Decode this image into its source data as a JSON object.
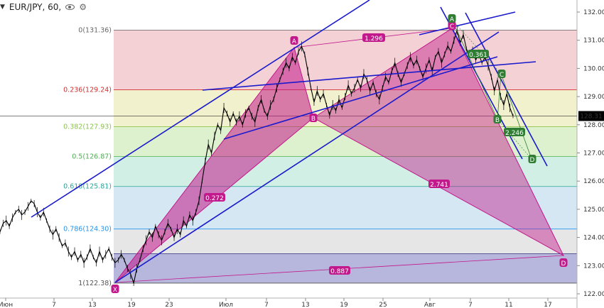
{
  "header": {
    "symbol_label": "EUR/JPY, 60,",
    "collapse_icon": "chevron-down-icon",
    "visibility_icon": "eye-icon",
    "settings_icon": "gear-icon"
  },
  "chart_data": {
    "type": "line",
    "title": "EUR/JPY, 60,",
    "xlabel": "",
    "ylabel": "",
    "ylim": [
      121.8,
      132.4
    ],
    "last_price_label": "128.31",
    "y_ticks": [
      "132.00",
      "131.00",
      "130.00",
      "129.00",
      "128.00",
      "127.00",
      "126.00",
      "125.00",
      "124.00",
      "123.00",
      "122.00"
    ],
    "x_ticks": [
      "Июн",
      "7",
      "13",
      "19",
      "23",
      "Июл",
      "7",
      "13",
      "19",
      "25",
      "Авг",
      "7",
      "11",
      "17"
    ],
    "fib_levels": [
      {
        "label": "0(131.36)",
        "value": 131.36,
        "color": "#666666"
      },
      {
        "label": "0.236(129.24)",
        "value": 129.24,
        "color": "#d32f2f"
      },
      {
        "label": "0.382(127.93)",
        "value": 127.93,
        "color": "#8bc34a"
      },
      {
        "label": "0.5(126.87)",
        "value": 126.87,
        "color": "#4caf50"
      },
      {
        "label": "0.618(125.81)",
        "value": 125.81,
        "color": "#26a69a"
      },
      {
        "label": "0.786(124.30)",
        "value": 124.3,
        "color": "#2196f3"
      },
      {
        "label": "1(122.38)",
        "value": 122.38,
        "color": "#555555"
      }
    ],
    "fib_band_colors": [
      "#f2c9cc",
      "#eff0c4",
      "#d7efc5",
      "#c9ece0",
      "#cde3f0",
      "#e2e2e2",
      "#b7b7dc"
    ],
    "xabcd_points": [
      {
        "label": "X",
        "price": 122.38
      },
      {
        "label": "A",
        "price": 130.78
      },
      {
        "label": "B",
        "price": 128.34
      },
      {
        "label": "C",
        "price": 131.36
      },
      {
        "label": "D",
        "price": 123.42
      }
    ],
    "pattern_ratios": [
      "0.272",
      "1.296",
      "2.741",
      "0.887"
    ],
    "abcd_points": [
      {
        "label": "A",
        "price": 131.4
      },
      {
        "label": "B",
        "price": 128.36
      },
      {
        "label": "C",
        "price": 129.9
      },
      {
        "label": "D",
        "price": 126.9
      }
    ],
    "abcd_ratios": [
      "0.361",
      "2.246"
    ],
    "series": [
      {
        "values": [
          124.2,
          124.5,
          124.6,
          124.4,
          124.7,
          124.9,
          125.0,
          124.8,
          124.9,
          125.1,
          125.3,
          125.2,
          124.9,
          124.7,
          124.9,
          124.6,
          124.3,
          124.1,
          124.3,
          124.0,
          123.7,
          123.8,
          123.5,
          123.3,
          123.5,
          123.2,
          123.4,
          123.1,
          123.3,
          123.6,
          123.3,
          123.1,
          123.5,
          123.2,
          123.4,
          123.6,
          123.3,
          123.1,
          123.2,
          123.4,
          123.2,
          122.9,
          122.7,
          122.38,
          122.9,
          123.2,
          123.6,
          123.9,
          124.2,
          124.0,
          124.4,
          124.1,
          123.9,
          124.2,
          124.5,
          124.3,
          124.0,
          124.3,
          124.1,
          124.6,
          124.4,
          124.8,
          124.6,
          124.9,
          125.3,
          126.0,
          126.7,
          127.3,
          127.0,
          127.6,
          128.0,
          127.8,
          128.6,
          128.4,
          128.1,
          128.4,
          128.1,
          128.3,
          128.0,
          128.4,
          128.6,
          128.3,
          128.1,
          128.6,
          128.9,
          128.5,
          128.3,
          128.7,
          128.9,
          129.3,
          129.6,
          129.9,
          130.2,
          130.0,
          130.4,
          130.2,
          130.6,
          130.78,
          130.5,
          129.9,
          129.3,
          128.8,
          129.2,
          128.9,
          129.1,
          128.7,
          128.34,
          128.7,
          128.5,
          128.9,
          128.6,
          129.0,
          129.4,
          129.1,
          129.3,
          129.6,
          129.3,
          129.8,
          129.6,
          129.2,
          129.5,
          129.1,
          128.9,
          129.3,
          129.7,
          129.5,
          129.9,
          130.2,
          129.8,
          129.5,
          129.8,
          130.1,
          130.4,
          130.1,
          130.3,
          130.0,
          129.7,
          130.0,
          130.3,
          129.9,
          130.4,
          130.6,
          130.2,
          130.5,
          130.8,
          130.6,
          131.0,
          131.36,
          130.9,
          131.2,
          130.7,
          130.4,
          130.6,
          130.3,
          130.5,
          130.2,
          130.4,
          130.1,
          129.7,
          129.2,
          129.6,
          129.0,
          128.7,
          129.1,
          128.6,
          128.31
        ]
      }
    ]
  }
}
